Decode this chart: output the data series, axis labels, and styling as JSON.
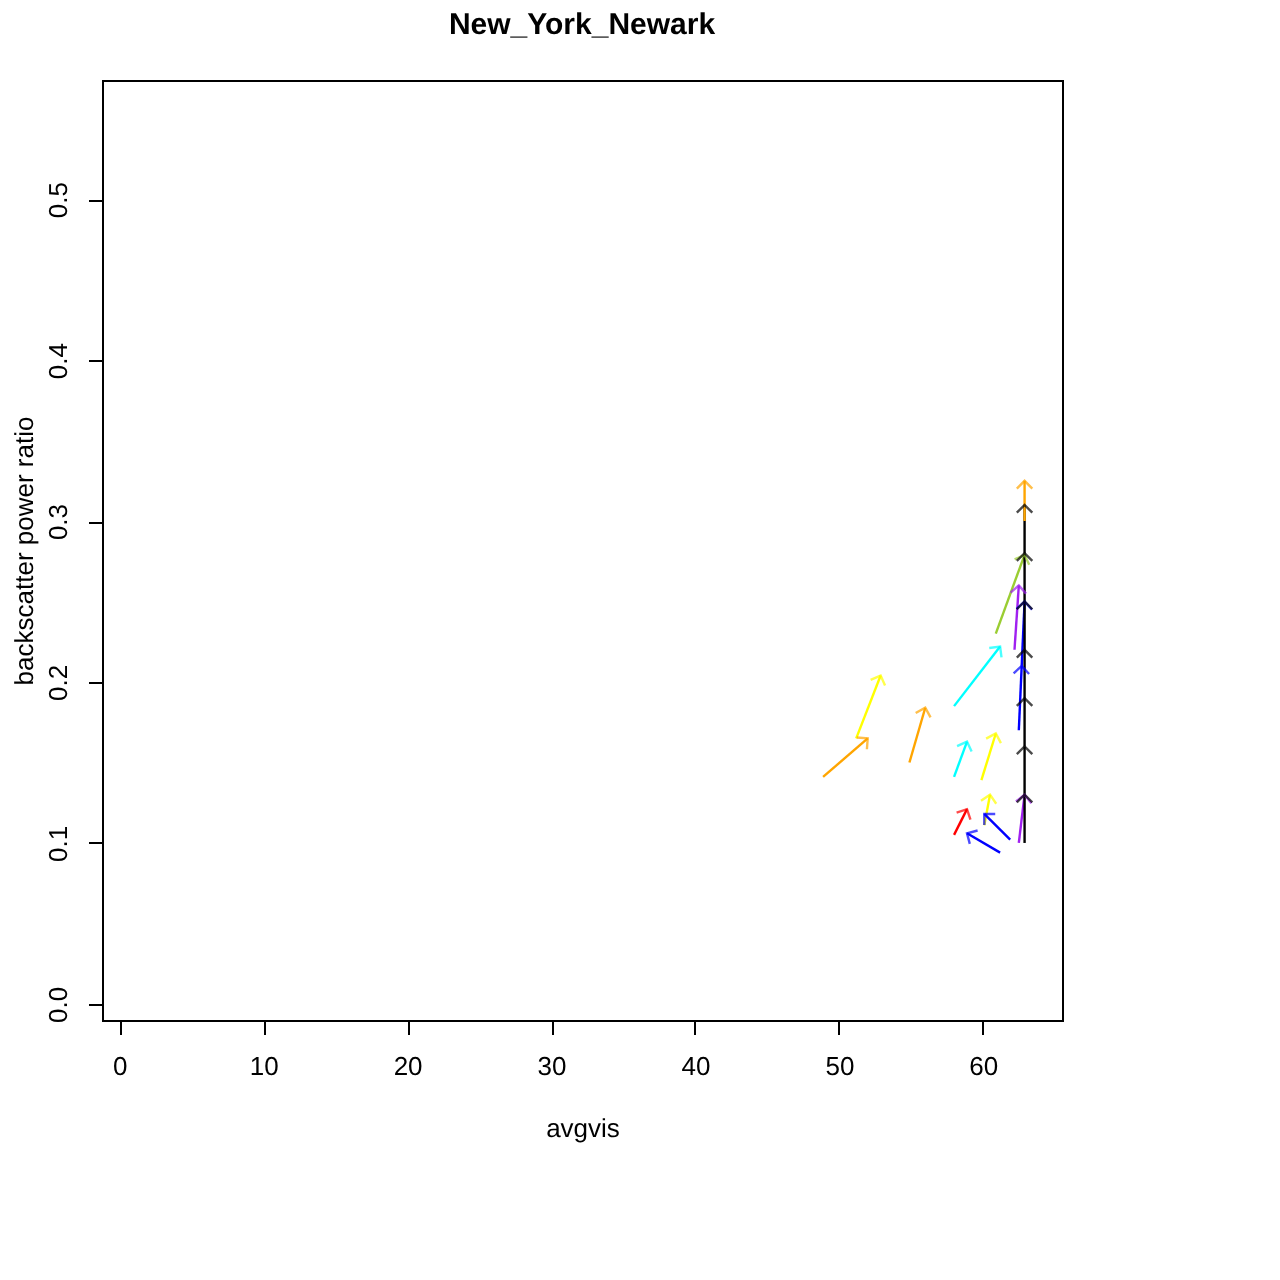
{
  "chart_data": {
    "type": "line",
    "title": "New_York_Newark",
    "xlabel": "avgvis",
    "ylabel": "backscatter power ratio",
    "xlim": [
      -1.2,
      65.5
    ],
    "ylim": [
      -0.01,
      0.574
    ],
    "xticks": [
      0,
      10,
      20,
      30,
      40,
      50,
      60
    ],
    "yticks": [
      {
        "value": 0,
        "label": "0.0"
      },
      0.1,
      0.2,
      0.3,
      0.4,
      0.5
    ],
    "grid": false,
    "legend": false,
    "series": [
      {
        "color": "#ffa500",
        "x": [
          48.9,
          52.0
        ],
        "values": [
          0.141,
          0.165
        ]
      },
      {
        "color": "#ffff00",
        "x": [
          51.2,
          52.9
        ],
        "values": [
          0.165,
          0.204
        ]
      },
      {
        "color": "#ffa500",
        "x": [
          54.9,
          56.0
        ],
        "values": [
          0.15,
          0.184
        ]
      },
      {
        "color": "#00ffff",
        "x": [
          58.0,
          61.2
        ],
        "values": [
          0.185,
          0.222
        ]
      },
      {
        "color": "#00ffff",
        "x": [
          58.0,
          58.9
        ],
        "values": [
          0.141,
          0.163
        ]
      },
      {
        "color": "#ffff00",
        "x": [
          60.1,
          60.5
        ],
        "values": [
          0.111,
          0.13
        ]
      },
      {
        "color": "#ff0000",
        "x": [
          58.0,
          58.9
        ],
        "values": [
          0.105,
          0.121
        ]
      },
      {
        "color": "#ffff00",
        "x": [
          59.9,
          60.9
        ],
        "values": [
          0.139,
          0.168
        ]
      },
      {
        "color": "#0000ff",
        "x": [
          61.2,
          58.9
        ],
        "values": [
          0.094,
          0.106
        ]
      },
      {
        "color": "#0000ff",
        "x": [
          61.9,
          60.1
        ],
        "values": [
          0.102,
          0.118
        ]
      },
      {
        "color": "#9acd32",
        "x": [
          60.9,
          62.9
        ],
        "values": [
          0.23,
          0.279
        ]
      },
      {
        "color": "#0000ff",
        "x": [
          62.5,
          62.7
        ],
        "values": [
          0.17,
          0.21
        ]
      },
      {
        "color": "#0000ff",
        "x": [
          62.7,
          62.9
        ],
        "values": [
          0.21,
          0.25
        ]
      },
      {
        "color": "#a020f0",
        "x": [
          62.2,
          62.5
        ],
        "values": [
          0.22,
          0.26
        ]
      },
      {
        "color": "#a020f0",
        "x": [
          62.5,
          62.9
        ],
        "values": [
          0.1,
          0.13
        ]
      },
      {
        "color": "#000000",
        "x": [
          62.9,
          62.9
        ],
        "values": [
          0.1,
          0.13
        ]
      },
      {
        "color": "#000000",
        "x": [
          62.9,
          62.9
        ],
        "values": [
          0.13,
          0.16
        ]
      },
      {
        "color": "#000000",
        "x": [
          62.9,
          62.9
        ],
        "values": [
          0.16,
          0.19
        ]
      },
      {
        "color": "#000000",
        "x": [
          62.9,
          62.9
        ],
        "values": [
          0.19,
          0.22
        ]
      },
      {
        "color": "#000000",
        "x": [
          62.9,
          62.9
        ],
        "values": [
          0.22,
          0.25
        ]
      },
      {
        "color": "#000000",
        "x": [
          62.9,
          62.9
        ],
        "values": [
          0.25,
          0.28
        ]
      },
      {
        "color": "#000000",
        "x": [
          62.9,
          62.9
        ],
        "values": [
          0.28,
          0.31
        ]
      },
      {
        "color": "#ffa500",
        "x": [
          62.9,
          62.9
        ],
        "values": [
          0.3,
          0.325
        ]
      }
    ]
  }
}
